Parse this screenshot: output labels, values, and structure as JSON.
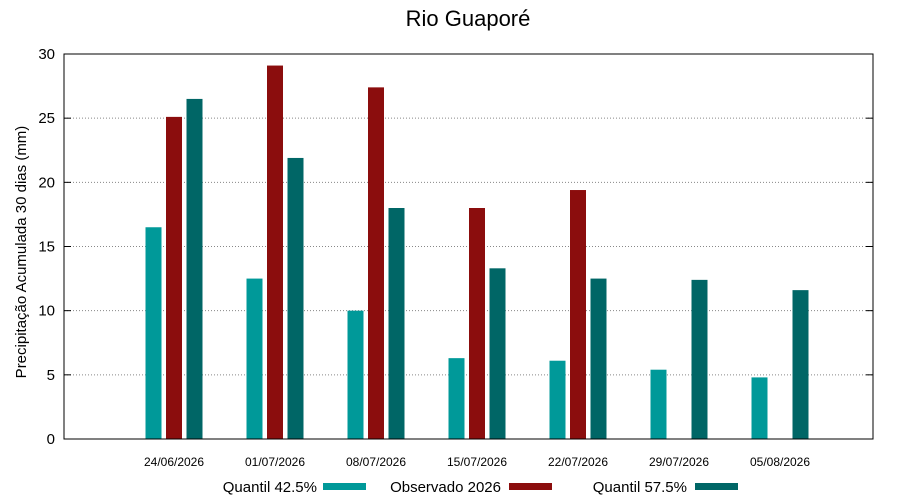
{
  "chart_data": {
    "type": "bar",
    "title": "Rio Guaporé",
    "xlabel": "",
    "ylabel": "Precipitação Acumulada 30 dias (mm)",
    "ylim": [
      0,
      30
    ],
    "yticks": [
      0,
      5,
      10,
      15,
      20,
      25,
      30
    ],
    "grid": true,
    "legend_position": "bottom",
    "categories": [
      "24/06/2026",
      "01/07/2026",
      "08/07/2026",
      "15/07/2026",
      "22/07/2026",
      "29/07/2026",
      "05/08/2026"
    ],
    "series": [
      {
        "name": "Quantil 42.5%",
        "color": "#009999",
        "values": [
          16.5,
          12.5,
          10.0,
          6.3,
          6.1,
          5.4,
          4.8
        ]
      },
      {
        "name": "Observado 2026",
        "color": "#8b0d0d",
        "values": [
          25.1,
          29.1,
          27.4,
          18.0,
          19.4,
          null,
          null
        ]
      },
      {
        "name": "Quantil 57.5%",
        "color": "#006666",
        "values": [
          26.5,
          21.9,
          18.0,
          13.3,
          12.5,
          12.4,
          11.6
        ]
      }
    ]
  }
}
